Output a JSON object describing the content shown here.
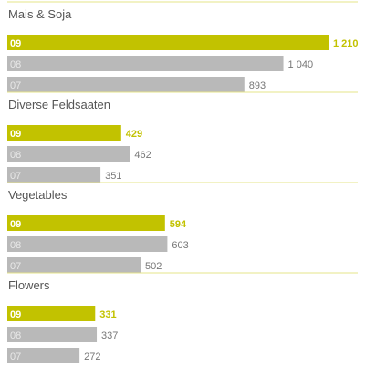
{
  "colors": {
    "accent": "#c2c200",
    "gray": "#b9b9b9",
    "text": "#555555",
    "divider": "#e6e48a"
  },
  "chart_data": {
    "type": "bar",
    "orientation": "horizontal",
    "grid": false,
    "value_max": 1210,
    "groups": [
      {
        "title": "Mais & Soja",
        "bars": [
          {
            "label": "09",
            "value": 1210,
            "value_label": "1 210",
            "highlight": true
          },
          {
            "label": "08",
            "value": 1040,
            "value_label": "1 040",
            "highlight": false
          },
          {
            "label": "07",
            "value": 893,
            "value_label": "893",
            "highlight": false
          }
        ]
      },
      {
        "title": "Diverse Feldsaaten",
        "bars": [
          {
            "label": "09",
            "value": 429,
            "value_label": "429",
            "highlight": true
          },
          {
            "label": "08",
            "value": 462,
            "value_label": "462",
            "highlight": false
          },
          {
            "label": "07",
            "value": 351,
            "value_label": "351",
            "highlight": false
          }
        ]
      },
      {
        "title": "Vegetables",
        "bars": [
          {
            "label": "09",
            "value": 594,
            "value_label": "594",
            "highlight": true
          },
          {
            "label": "08",
            "value": 603,
            "value_label": "603",
            "highlight": false
          },
          {
            "label": "07",
            "value": 502,
            "value_label": "502",
            "highlight": false
          }
        ]
      },
      {
        "title": "Flowers",
        "bars": [
          {
            "label": "09",
            "value": 331,
            "value_label": "331",
            "highlight": true
          },
          {
            "label": "08",
            "value": 337,
            "value_label": "337",
            "highlight": false
          },
          {
            "label": "07",
            "value": 272,
            "value_label": "272",
            "highlight": false
          }
        ]
      }
    ]
  }
}
